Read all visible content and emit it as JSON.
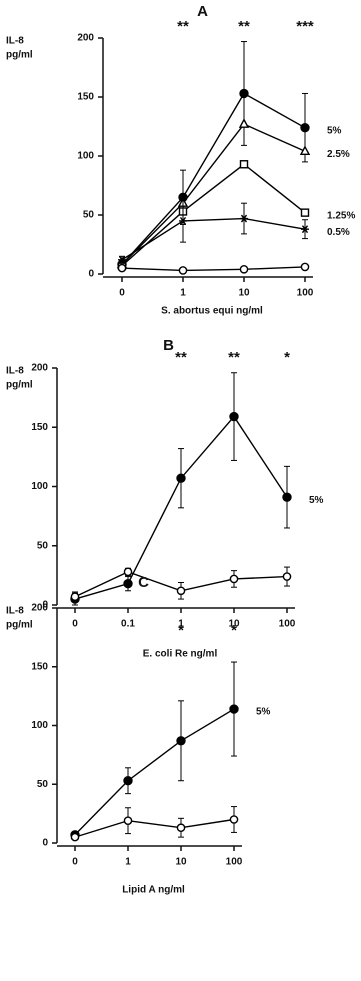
{
  "chart_data": [
    {
      "type": "line",
      "panel_label": "A",
      "y_label": [
        "IL-8",
        "pg/ml"
      ],
      "x_label": "S. abortus equi ng/ml",
      "categories": [
        "0",
        "1",
        "10",
        "100"
      ],
      "ylim": [
        0,
        200
      ],
      "yticks": [
        0,
        50,
        100,
        150,
        200
      ],
      "annotations": [
        {
          "text": "**",
          "x": "1"
        },
        {
          "text": "**",
          "x": "10"
        },
        {
          "text": "***",
          "x": "100"
        }
      ],
      "series": [
        {
          "name": "5%",
          "marker": "filled-circle",
          "color": "#000000",
          "values": [
            8,
            65,
            153,
            124
          ],
          "errors": [
            3,
            23,
            44,
            29
          ]
        },
        {
          "name": "2.5%",
          "marker": "open-triangle",
          "color": "#000000",
          "values": [
            8,
            60,
            127,
            104
          ]
        },
        {
          "name": "1.25%",
          "marker": "open-square",
          "color": "#000000",
          "values": [
            7,
            53,
            93,
            52
          ]
        },
        {
          "name": "0.5%",
          "marker": "asterisk",
          "color": "#000000",
          "values": [
            12,
            45,
            47,
            38
          ],
          "errors": [
            3,
            18,
            13,
            8
          ]
        },
        {
          "marker": "open-circle",
          "color": "#000000",
          "values": [
            5,
            3,
            4,
            6
          ]
        }
      ]
    },
    {
      "type": "line",
      "panel_label": "B",
      "y_label": [
        "IL-8",
        "pg/ml"
      ],
      "x_label": "E. coli Re ng/ml",
      "categories": [
        "0",
        "0.1",
        "1",
        "10",
        "100"
      ],
      "ylim": [
        0,
        200
      ],
      "yticks": [
        0,
        50,
        100,
        150,
        200
      ],
      "annotations": [
        {
          "text": "**",
          "x": "1"
        },
        {
          "text": "**",
          "x": "10"
        },
        {
          "text": "*",
          "x": "100"
        }
      ],
      "series": [
        {
          "name": "5%",
          "marker": "filled-circle",
          "color": "#000000",
          "values": [
            5,
            18,
            107,
            159,
            91
          ],
          "errors": [
            5,
            6,
            25,
            37,
            26
          ]
        },
        {
          "marker": "open-circle",
          "color": "#000000",
          "values": [
            7,
            28,
            12,
            22,
            24
          ],
          "errors": [
            4,
            3,
            7,
            7,
            8
          ]
        }
      ]
    },
    {
      "type": "line",
      "panel_label": "C",
      "y_label": [
        "IL-8",
        "pg/ml"
      ],
      "x_label": "Lipid A ng/ml",
      "categories": [
        "0",
        "1",
        "10",
        "100"
      ],
      "ylim": [
        0,
        200
      ],
      "yticks": [
        0,
        50,
        100,
        150,
        200
      ],
      "annotations": [
        {
          "text": "*",
          "x": "10"
        },
        {
          "text": "*",
          "x": "100"
        }
      ],
      "series": [
        {
          "name": "5%",
          "marker": "filled-circle",
          "color": "#000000",
          "values": [
            7,
            53,
            87,
            114
          ],
          "errors": [
            2,
            11,
            34,
            40
          ]
        },
        {
          "marker": "open-circle",
          "color": "#000000",
          "values": [
            5,
            19,
            13,
            20
          ],
          "errors": [
            2,
            11,
            8,
            11
          ]
        }
      ]
    }
  ]
}
